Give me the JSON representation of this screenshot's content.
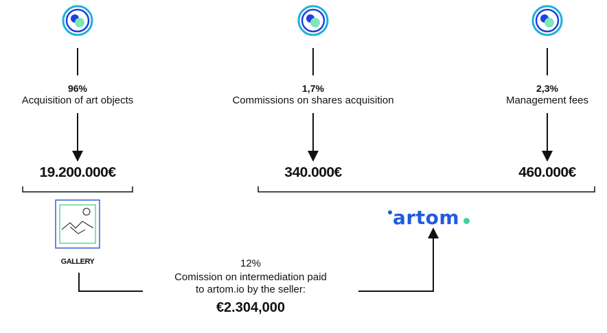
{
  "nodes": [
    {
      "percent": "96%",
      "label": "Acquisition of art objects",
      "amount": "19.200.000€"
    },
    {
      "percent": "1,7%",
      "label": "Commissions on shares acquisition",
      "amount": "340.000€"
    },
    {
      "percent": "2,3%",
      "label": "Management fees",
      "amount": "460.000€"
    }
  ],
  "gallery": {
    "label": "GALLERY",
    "icon": "landscape-image-icon"
  },
  "brand": {
    "name": "artom",
    "color": "#1f5be0",
    "accent": "#3fd2a0"
  },
  "commission": {
    "percent": "12%",
    "line1": "Comission on intermediation paid",
    "line2": "to artom.io by the seller:",
    "amount": "€2.304,000"
  },
  "colors": {
    "icon_ring": "#1fb0d8",
    "icon_blue": "#1f3fe0",
    "icon_green": "#7ee6b8",
    "gallery_frame": "#3a5bd8",
    "gallery_inner": "#5fd890"
  }
}
